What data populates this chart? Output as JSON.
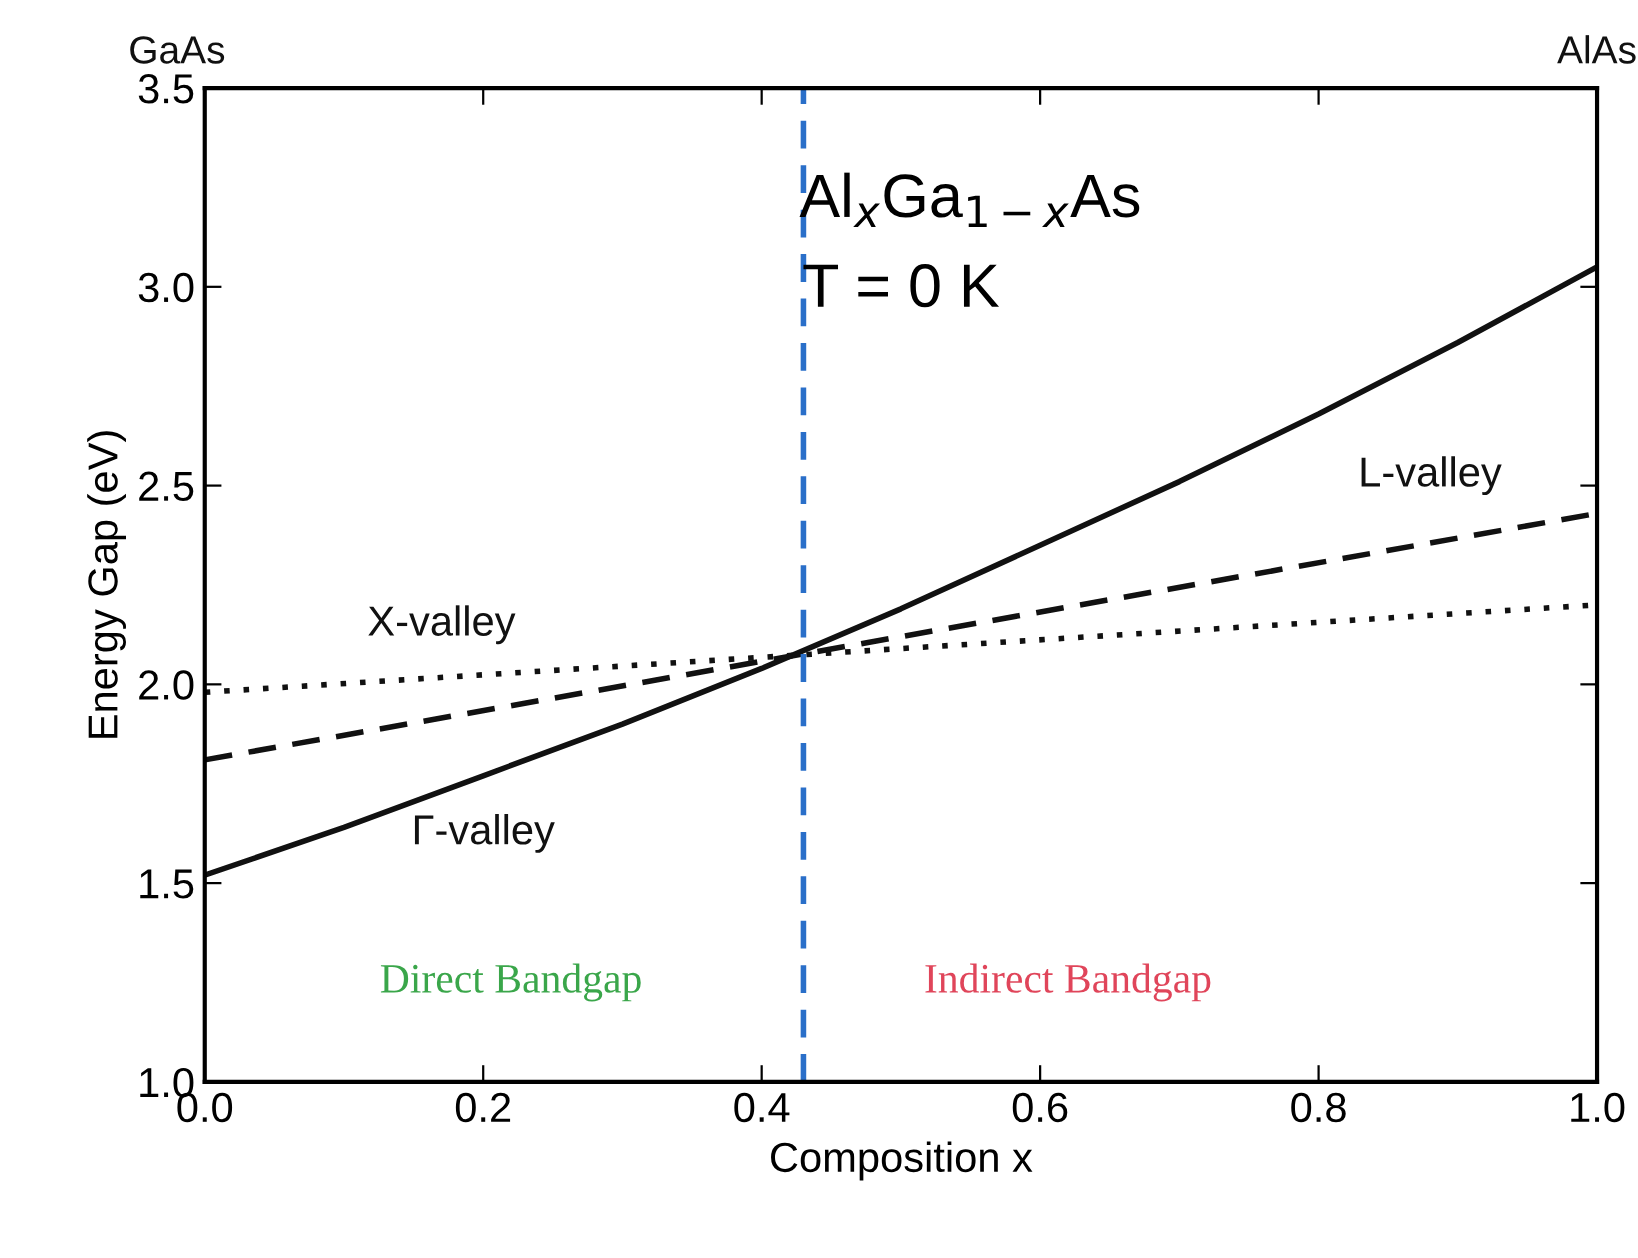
{
  "chart_data": {
    "type": "line",
    "title": "Al$_{x}$Ga$_{1−x}$As",
    "subtitle": "T = 0 K",
    "xlabel": "Composition x",
    "ylabel": "Energy Gap (eV)",
    "series": [
      {
        "color": "#111111",
        "line_style": "solid",
        "x": [
          0,
          0.1,
          0.2,
          0.3,
          0.4,
          0.5,
          0.6,
          0.7,
          0.8,
          0.9,
          1.0
        ],
        "values": [
          1.52,
          1.64,
          1.77,
          1.9,
          2.04,
          2.19,
          2.35,
          2.51,
          2.68,
          2.86,
          3.05
        ]
      },
      {
        "color": "#111111",
        "line_style": "dashed",
        "x": [
          0,
          0.5,
          1.0
        ],
        "values": [
          1.81,
          2.12,
          2.43
        ]
      },
      {
        "color": "#111111",
        "line_style": "dotted",
        "x": [
          0,
          0.5,
          1.0
        ],
        "values": [
          1.98,
          2.09,
          2.2
        ]
      }
    ],
    "xlim": [
      0,
      1.0
    ],
    "ylim": [
      1.0,
      3.5
    ],
    "xticks": [
      {
        "value": 0,
        "label": "0.0"
      },
      0.2,
      0.4,
      0.6,
      0.8,
      {
        "value": 1.0,
        "label": "1.0"
      }
    ],
    "yticks": [
      {
        "value": 1.0,
        "label": "1.0"
      },
      1.5,
      {
        "value": 2.0,
        "label": "2.0"
      },
      2.5,
      {
        "value": 3.0,
        "label": "3.0"
      },
      3.5
    ],
    "ref_lines": [
      {
        "axis": "x",
        "value": 0.43,
        "color": "#2a6fc9",
        "line_style": "dashed"
      }
    ],
    "annotations": [
      "GaAs",
      "AlAs",
      "X-valley",
      "Γ-valley",
      "L-valley",
      "Direct Bandgap",
      "Indirect Bandgap"
    ],
    "grid": false
  }
}
